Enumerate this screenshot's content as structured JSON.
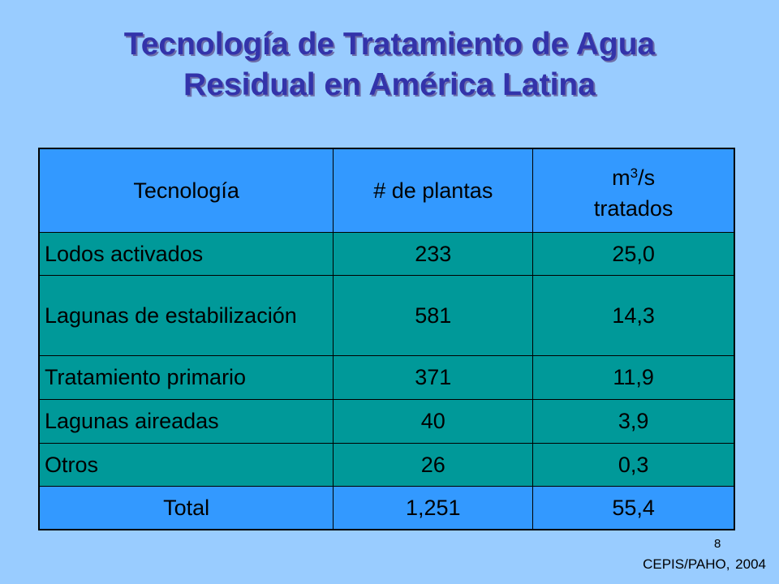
{
  "slide": {
    "title_line1": "Tecnología de Tratamiento de Agua",
    "title_line2": "Residual en América Latina",
    "page_number": "8",
    "source": "CEPIS/PAHO, 2004"
  },
  "table": {
    "headers": {
      "tech": "Tecnología",
      "plants": "# de plantas",
      "flow_unit_base": "m",
      "flow_unit_sup": "3",
      "flow_unit_rest": "/s",
      "flow_line2": "tratados"
    },
    "rows": [
      {
        "name": "Lodos activados",
        "plants": "233",
        "flow": "25,0"
      },
      {
        "name": "Lagunas de estabilización",
        "plants": "581",
        "flow": "14,3"
      },
      {
        "name": "Tratamiento primario",
        "plants": "371",
        "flow": "11,9"
      },
      {
        "name": "Lagunas aireadas",
        "plants": "40",
        "flow": "3,9"
      },
      {
        "name": "Otros",
        "plants": "26",
        "flow": "0,3"
      }
    ],
    "total": {
      "name": "Total",
      "plants": "1,251",
      "flow": "55,4"
    }
  },
  "colors": {
    "background": "#99ccff",
    "header_fill": "#3399ff",
    "row_fill": "#009999",
    "title": "#3333aa"
  }
}
